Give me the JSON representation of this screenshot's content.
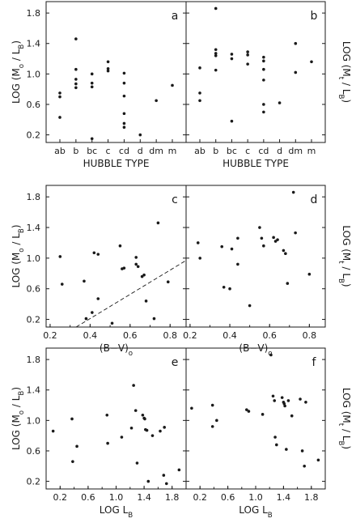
{
  "chart_data": [
    {
      "type": "scatter",
      "panel_label": "a",
      "xlabel": "HUBBLE TYPE",
      "ylabel_left": "LOG (M₀ / L_B)",
      "categories": [
        "ab",
        "b",
        "bc",
        "c",
        "cd",
        "d",
        "dm",
        "m"
      ],
      "ylim": [
        0.1,
        1.95
      ],
      "yticks": [
        0.2,
        0.6,
        1.0,
        1.4,
        1.8
      ],
      "points": [
        {
          "x": "ab",
          "y": 0.75
        },
        {
          "x": "ab",
          "y": 0.7
        },
        {
          "x": "ab",
          "y": 0.43
        },
        {
          "x": "b",
          "y": 1.46
        },
        {
          "x": "b",
          "y": 1.06
        },
        {
          "x": "b",
          "y": 0.93
        },
        {
          "x": "b",
          "y": 0.87
        },
        {
          "x": "b",
          "y": 0.82
        },
        {
          "x": "bc",
          "y": 1.0
        },
        {
          "x": "bc",
          "y": 0.88
        },
        {
          "x": "bc",
          "y": 0.83
        },
        {
          "x": "bc",
          "y": 0.15
        },
        {
          "x": "c",
          "y": 1.16
        },
        {
          "x": "c",
          "y": 1.07
        },
        {
          "x": "c",
          "y": 1.04
        },
        {
          "x": "cd",
          "y": 1.01
        },
        {
          "x": "cd",
          "y": 0.88
        },
        {
          "x": "cd",
          "y": 0.71
        },
        {
          "x": "cd",
          "y": 0.48
        },
        {
          "x": "cd",
          "y": 0.35
        },
        {
          "x": "cd",
          "y": 0.3
        },
        {
          "x": "d",
          "y": 0.2
        },
        {
          "x": "dm",
          "y": 0.65
        },
        {
          "x": "m",
          "y": 0.85
        }
      ]
    },
    {
      "type": "scatter",
      "panel_label": "b",
      "xlabel": "HUBBLE TYPE",
      "ylabel_right": "LOG (Mₜ / L_B)",
      "categories": [
        "ab",
        "b",
        "bc",
        "c",
        "cd",
        "d",
        "dm",
        "m"
      ],
      "ylim": [
        0.1,
        1.95
      ],
      "points": [
        {
          "x": "ab",
          "y": 1.08
        },
        {
          "x": "ab",
          "y": 0.75
        },
        {
          "x": "ab",
          "y": 0.65
        },
        {
          "x": "b",
          "y": 1.86
        },
        {
          "x": "b",
          "y": 1.32
        },
        {
          "x": "b",
          "y": 1.27
        },
        {
          "x": "b",
          "y": 1.24
        },
        {
          "x": "b",
          "y": 1.05
        },
        {
          "x": "bc",
          "y": 1.26
        },
        {
          "x": "bc",
          "y": 1.2
        },
        {
          "x": "bc",
          "y": 0.38
        },
        {
          "x": "c",
          "y": 1.29
        },
        {
          "x": "c",
          "y": 1.25
        },
        {
          "x": "c",
          "y": 1.13
        },
        {
          "x": "cd",
          "y": 1.22
        },
        {
          "x": "cd",
          "y": 1.17
        },
        {
          "x": "cd",
          "y": 1.06
        },
        {
          "x": "cd",
          "y": 0.92
        },
        {
          "x": "cd",
          "y": 0.6
        },
        {
          "x": "cd",
          "y": 0.5
        },
        {
          "x": "d",
          "y": 0.62
        },
        {
          "x": "dm",
          "y": 1.4
        },
        {
          "x": "dm",
          "y": 1.02
        },
        {
          "x": "m",
          "y": 1.16
        }
      ]
    },
    {
      "type": "scatter",
      "panel_label": "c",
      "xlabel": "(B−V)₀",
      "ylabel_left": "LOG (M₀ / L_B)",
      "xlim": [
        0.18,
        0.88
      ],
      "xticks": [
        0.2,
        0.4,
        0.6,
        0.8
      ],
      "ylim": [
        0.1,
        1.95
      ],
      "yticks": [
        0.2,
        0.6,
        1.0,
        1.4,
        1.8
      ],
      "dashed_line": [
        [
          0.33,
          0.1
        ],
        [
          0.88,
          0.97
        ]
      ],
      "points": [
        {
          "x": 0.25,
          "y": 1.02
        },
        {
          "x": 0.26,
          "y": 0.66
        },
        {
          "x": 0.37,
          "y": 0.7
        },
        {
          "x": 0.38,
          "y": 0.21
        },
        {
          "x": 0.41,
          "y": 0.29
        },
        {
          "x": 0.42,
          "y": 1.07
        },
        {
          "x": 0.44,
          "y": 1.05
        },
        {
          "x": 0.44,
          "y": 0.47
        },
        {
          "x": 0.51,
          "y": 0.15
        },
        {
          "x": 0.55,
          "y": 1.16
        },
        {
          "x": 0.56,
          "y": 0.86
        },
        {
          "x": 0.57,
          "y": 0.87
        },
        {
          "x": 0.63,
          "y": 1.01
        },
        {
          "x": 0.63,
          "y": 0.92
        },
        {
          "x": 0.64,
          "y": 0.89
        },
        {
          "x": 0.66,
          "y": 0.76
        },
        {
          "x": 0.67,
          "y": 0.78
        },
        {
          "x": 0.68,
          "y": 0.44
        },
        {
          "x": 0.72,
          "y": 0.21
        },
        {
          "x": 0.74,
          "y": 1.46
        },
        {
          "x": 0.79,
          "y": 0.69
        }
      ]
    },
    {
      "type": "scatter",
      "panel_label": "d",
      "xlabel": "(B−V)₀",
      "ylabel_right": "LOG (Mₜ / L_B)",
      "xlim": [
        0.18,
        0.88
      ],
      "xticks": [
        0.2,
        0.4,
        0.6,
        0.8
      ],
      "ylim": [
        0.1,
        1.95
      ],
      "points": [
        {
          "x": 0.24,
          "y": 1.2
        },
        {
          "x": 0.25,
          "y": 1.0
        },
        {
          "x": 0.36,
          "y": 1.15
        },
        {
          "x": 0.37,
          "y": 0.62
        },
        {
          "x": 0.4,
          "y": 0.6
        },
        {
          "x": 0.41,
          "y": 1.12
        },
        {
          "x": 0.44,
          "y": 1.26
        },
        {
          "x": 0.44,
          "y": 0.92
        },
        {
          "x": 0.5,
          "y": 0.38
        },
        {
          "x": 0.55,
          "y": 1.4
        },
        {
          "x": 0.56,
          "y": 1.26
        },
        {
          "x": 0.57,
          "y": 1.16
        },
        {
          "x": 0.62,
          "y": 1.27
        },
        {
          "x": 0.63,
          "y": 1.22
        },
        {
          "x": 0.64,
          "y": 1.24
        },
        {
          "x": 0.67,
          "y": 1.1
        },
        {
          "x": 0.68,
          "y": 1.06
        },
        {
          "x": 0.69,
          "y": 0.67
        },
        {
          "x": 0.72,
          "y": 1.86
        },
        {
          "x": 0.73,
          "y": 1.33
        },
        {
          "x": 0.8,
          "y": 0.79
        }
      ]
    },
    {
      "type": "scatter",
      "panel_label": "e",
      "xlabel": "LOG L_B",
      "ylabel_left": "LOG (M₀ / L_B)",
      "xlim": [
        0.0,
        2.0
      ],
      "xticks": [
        0.2,
        0.6,
        1.0,
        1.4,
        1.8
      ],
      "ylim": [
        0.1,
        1.95
      ],
      "yticks": [
        0.2,
        0.6,
        1.0,
        1.4,
        1.8
      ],
      "points": [
        {
          "x": 0.1,
          "y": 0.86
        },
        {
          "x": 0.37,
          "y": 1.02
        },
        {
          "x": 0.38,
          "y": 0.46
        },
        {
          "x": 0.44,
          "y": 0.66
        },
        {
          "x": 0.87,
          "y": 1.07
        },
        {
          "x": 0.88,
          "y": 0.7
        },
        {
          "x": 1.08,
          "y": 0.78
        },
        {
          "x": 1.22,
          "y": 0.9
        },
        {
          "x": 1.25,
          "y": 1.46
        },
        {
          "x": 1.28,
          "y": 1.13
        },
        {
          "x": 1.3,
          "y": 0.44
        },
        {
          "x": 1.38,
          "y": 1.07
        },
        {
          "x": 1.4,
          "y": 1.03
        },
        {
          "x": 1.41,
          "y": 1.02
        },
        {
          "x": 1.42,
          "y": 0.88
        },
        {
          "x": 1.44,
          "y": 0.87
        },
        {
          "x": 1.46,
          "y": 0.2
        },
        {
          "x": 1.52,
          "y": 0.8
        },
        {
          "x": 1.63,
          "y": 0.86
        },
        {
          "x": 1.69,
          "y": 0.91
        },
        {
          "x": 1.68,
          "y": 0.28
        },
        {
          "x": 1.72,
          "y": 0.17
        },
        {
          "x": 1.9,
          "y": 0.35
        }
      ]
    },
    {
      "type": "scatter",
      "panel_label": "f",
      "xlabel": "LOG L_B",
      "ylabel_right": "LOG (Mₜ / L_B)",
      "xlim": [
        0.0,
        2.0
      ],
      "xticks": [
        0.2,
        0.6,
        1.0,
        1.4,
        1.8
      ],
      "ylim": [
        0.1,
        1.95
      ],
      "points": [
        {
          "x": 0.08,
          "y": 1.16
        },
        {
          "x": 0.38,
          "y": 1.2
        },
        {
          "x": 0.38,
          "y": 0.92
        },
        {
          "x": 0.44,
          "y": 1.0
        },
        {
          "x": 0.87,
          "y": 1.14
        },
        {
          "x": 0.9,
          "y": 1.12
        },
        {
          "x": 1.1,
          "y": 1.08
        },
        {
          "x": 1.22,
          "y": 1.86
        },
        {
          "x": 1.25,
          "y": 1.32
        },
        {
          "x": 1.27,
          "y": 1.26
        },
        {
          "x": 1.28,
          "y": 0.78
        },
        {
          "x": 1.3,
          "y": 0.68
        },
        {
          "x": 1.38,
          "y": 1.3
        },
        {
          "x": 1.4,
          "y": 1.24
        },
        {
          "x": 1.41,
          "y": 1.22
        },
        {
          "x": 1.42,
          "y": 1.19
        },
        {
          "x": 1.44,
          "y": 0.62
        },
        {
          "x": 1.47,
          "y": 1.26
        },
        {
          "x": 1.52,
          "y": 1.06
        },
        {
          "x": 1.64,
          "y": 1.28
        },
        {
          "x": 1.67,
          "y": 0.6
        },
        {
          "x": 1.7,
          "y": 0.4
        },
        {
          "x": 1.72,
          "y": 1.24
        },
        {
          "x": 1.9,
          "y": 0.48
        }
      ]
    }
  ]
}
